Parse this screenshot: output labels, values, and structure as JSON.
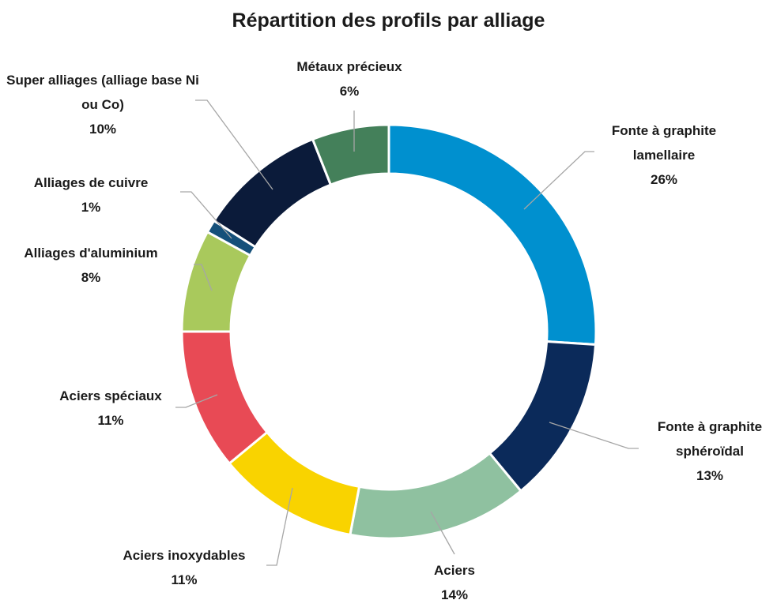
{
  "chart_data": {
    "type": "donut",
    "title": "Répartition des profils par alliage",
    "categories": [
      "Fonte à graphite lamellaire",
      "Fonte à graphite sphéroïdal",
      "Aciers",
      "Aciers inoxydables",
      "Aciers spéciaux",
      "Alliages d'aluminium",
      "Alliages de cuivre",
      "Super alliages (alliage base Ni ou Co)",
      "Métaux précieux"
    ],
    "values": [
      26,
      13,
      14,
      11,
      11,
      8,
      1,
      10,
      6
    ],
    "value_labels": [
      "26%",
      "13%",
      "14%",
      "11%",
      "11%",
      "8%",
      "1%",
      "10%",
      "6%"
    ],
    "colors": [
      "#0090cf",
      "#0b2a5a",
      "#8fc1a0",
      "#f9d300",
      "#e84a55",
      "#a9c95c",
      "#15507a",
      "#0b1b3a",
      "#44805a"
    ]
  }
}
